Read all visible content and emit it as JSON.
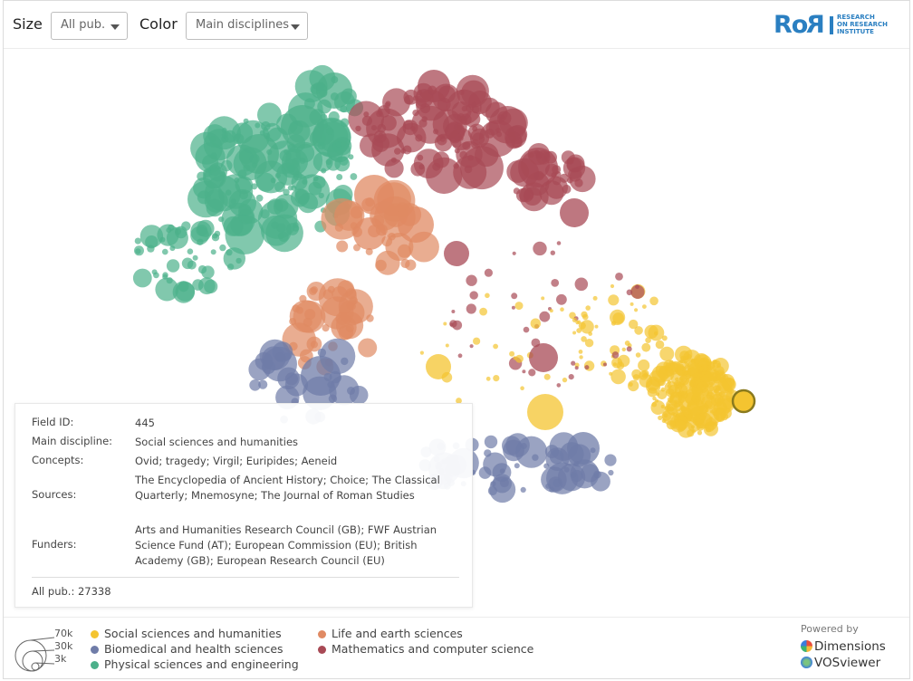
{
  "toolbar": {
    "size_label": "Size",
    "size_value": "All pub.",
    "color_label": "Color",
    "color_value": "Main disciplines"
  },
  "logo": {
    "mark": "RoRI",
    "line1": "RESEARCH",
    "line2": "ON RESEARCH",
    "line3": "INSTITUTE"
  },
  "info": {
    "field_id_label": "Field ID:",
    "field_id": "445",
    "discipline_label": "Main discipline:",
    "discipline": "Social sciences and humanities",
    "concepts_label": "Concepts:",
    "concepts": "Ovid; tragedy; Virgil; Euripides; Aeneid",
    "sources_label": "Sources:",
    "sources": "The Encyclopedia of Ancient History; Choice; The Classical Quarterly; Mnemosyne; The Journal of Roman Studies",
    "funders_label": "Funders:",
    "funders": "Arts and Humanities Research Council (GB); FWF Austrian Science Fund (AT); European Commission (EU); British Academy (GB); European Research Council (EU)",
    "allpub": "All pub.: 27338"
  },
  "legend": {
    "size_ticks": [
      "70k",
      "30k",
      "3k"
    ],
    "items": [
      {
        "label": "Social sciences and humanities",
        "color": "#f4c430"
      },
      {
        "label": "Biomedical and health sciences",
        "color": "#6f7ca8"
      },
      {
        "label": "Physical sciences and engineering",
        "color": "#4cb08a"
      },
      {
        "label": "Life and earth sciences",
        "color": "#e08a63"
      },
      {
        "label": "Mathematics and computer science",
        "color": "#a84a55"
      }
    ]
  },
  "powered": {
    "label": "Powered by",
    "dimensions": "Dimensions",
    "vosviewer": "VOSviewer"
  },
  "colors": {
    "social": "#f4c430",
    "biomedical": "#6f7ca8",
    "physical": "#4cb08a",
    "life": "#e08a63",
    "math": "#a84a55",
    "accent": "#2a7fc1"
  }
}
